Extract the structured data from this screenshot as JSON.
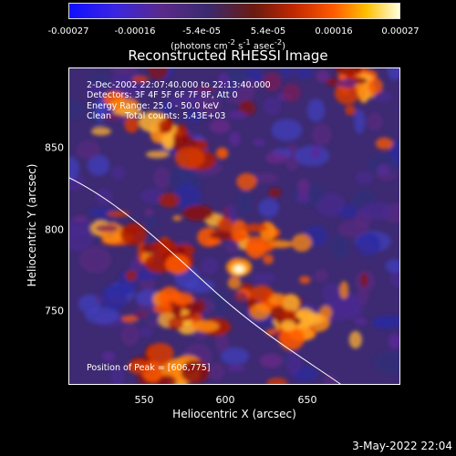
{
  "colorbar": {
    "ticks": [
      "-0.00027",
      "-0.00016",
      "-5.4e-05",
      "5.4e-05",
      "0.00016",
      "0.00027"
    ],
    "units_main": "(photons cm",
    "units_sup1": "-2",
    "units_mid": " s",
    "units_sup2": "-1",
    "units_end": " asec",
    "units_sup3": "-2",
    "units_close": ")"
  },
  "title": "Reconstructed RHESSI Image",
  "info": {
    "line1": "2-Dec-2002 22:07:40.000 to 22:13:40.000",
    "line2": "Detectors: 3F 4F 5F 6F 7F 8F, Att 0",
    "line3": "Energy Range: 25.0 - 50.0 keV",
    "line4": "Clean     Total counts: 5.43E+03",
    "peak": "Position of Peak = [606,775]"
  },
  "axes": {
    "xlabel": "Heliocentric X (arcsec)",
    "ylabel": "Heliocentric Y (arcsec)",
    "xticks": [
      "550",
      "600",
      "650"
    ],
    "yticks": [
      "850",
      "800",
      "750"
    ]
  },
  "footer": {
    "date": "3-May-2022 22:04"
  }
}
